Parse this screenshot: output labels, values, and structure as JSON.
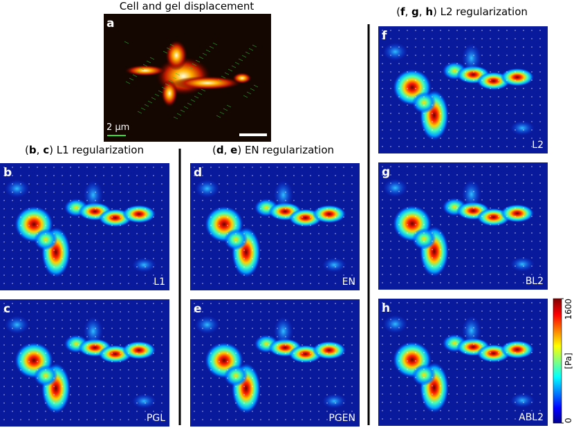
{
  "panel_a": {
    "title": "Cell and gel displacement",
    "letter": "a",
    "scale_bar": "2 µm"
  },
  "groups": [
    {
      "heading": [
        "(",
        "b",
        ", ",
        "c",
        ") L1 regularization"
      ],
      "panels": [
        {
          "letter": "b",
          "label": "L1"
        },
        {
          "letter": "c",
          "label": "PGL"
        }
      ]
    },
    {
      "heading": [
        "(",
        "d",
        ", ",
        "e",
        ") EN regularization"
      ],
      "panels": [
        {
          "letter": "d",
          "label": "EN"
        },
        {
          "letter": "e",
          "label": "PGEN"
        }
      ]
    },
    {
      "heading": [
        "(",
        "f",
        ", ",
        "g",
        ", ",
        "h",
        ") L2 regularization"
      ],
      "panels": [
        {
          "letter": "f",
          "label": "L2"
        },
        {
          "letter": "g",
          "label": "BL2"
        },
        {
          "letter": "h",
          "label": "ABL2"
        }
      ]
    }
  ],
  "colorbar": {
    "label": "[Pa]",
    "ticks": [
      0,
      1600
    ]
  }
}
